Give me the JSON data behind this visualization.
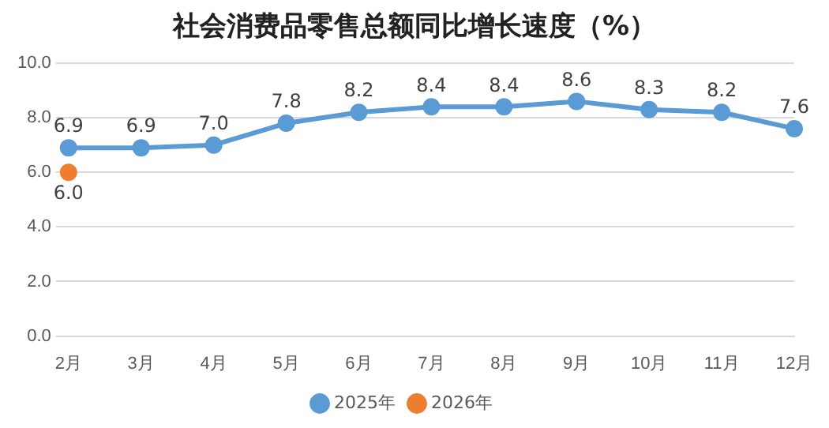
{
  "chart_data": {
    "type": "line",
    "title": "社会消费品零售总额同比增长速度（%）",
    "categories": [
      "2月",
      "3月",
      "4月",
      "5月",
      "6月",
      "7月",
      "8月",
      "9月",
      "10月",
      "11月",
      "12月"
    ],
    "series": [
      {
        "name": "2025年",
        "color": "#5b9bd5",
        "values": [
          6.9,
          6.9,
          7.0,
          7.8,
          8.2,
          8.4,
          8.4,
          8.6,
          8.3,
          8.2,
          7.6
        ],
        "value_labels": [
          "6.9",
          "6.9",
          "7.0",
          "7.8",
          "8.2",
          "8.4",
          "8.4",
          "8.6",
          "8.3",
          "8.2",
          "7.6"
        ]
      },
      {
        "name": "2026年",
        "color": "#ed7d31",
        "values": [
          6.0,
          null,
          null,
          null,
          null,
          null,
          null,
          null,
          null,
          null,
          null
        ],
        "value_labels": [
          "6.0",
          null,
          null,
          null,
          null,
          null,
          null,
          null,
          null,
          null,
          null
        ]
      }
    ],
    "ylim": [
      0,
      10
    ],
    "yticks": [
      {
        "value": 0,
        "label": "0.0"
      },
      {
        "value": 2,
        "label": "2.0"
      },
      {
        "value": 4,
        "label": "4.0"
      },
      {
        "value": 6,
        "label": "6.0"
      },
      {
        "value": 8,
        "label": "8.0"
      },
      {
        "value": 10,
        "label": "10.0"
      }
    ],
    "grid": "y",
    "legend": "bottom",
    "marker": "circle",
    "line_style": "solid"
  }
}
